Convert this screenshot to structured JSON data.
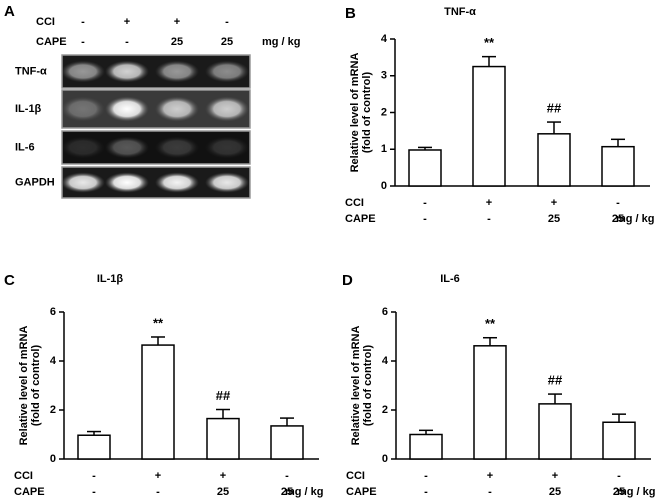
{
  "gel": {
    "panel_label": "A",
    "row_labels": [
      "CCI",
      "CAPE"
    ],
    "lanes": [
      [
        "-",
        "-"
      ],
      [
        "+",
        "-"
      ],
      [
        "+",
        "25"
      ],
      [
        "-",
        "25"
      ]
    ],
    "unit": "mg / kg",
    "bands": [
      "TNF-α",
      "IL-1β",
      "IL-6",
      "GAPDH"
    ]
  },
  "chart_data": [
    {
      "type": "bar",
      "panel_label": "B",
      "title": "TNF-α",
      "ylabel": [
        "Relative level of mRNA",
        "(fold of control)"
      ],
      "row_labels": [
        "CCI",
        "CAPE"
      ],
      "categories": [
        [
          "-",
          "-"
        ],
        [
          "+",
          "-"
        ],
        [
          "+",
          "25"
        ],
        [
          "-",
          "25"
        ]
      ],
      "unit": "mg / kg",
      "values": [
        0.98,
        3.25,
        1.42,
        1.07
      ],
      "errors": [
        0.07,
        0.27,
        0.32,
        0.2
      ],
      "color": "#ffffff",
      "ylim": [
        0,
        4
      ],
      "yticks": [
        0,
        1,
        2,
        3,
        4
      ],
      "annotations": [
        {
          "index": 1,
          "text": "**"
        },
        {
          "index": 2,
          "text": "##"
        }
      ]
    },
    {
      "type": "bar",
      "panel_label": "C",
      "title": "IL-1β",
      "ylabel": [
        "Relative level of mRNA",
        "(fold of control)"
      ],
      "row_labels": [
        "CCI",
        "CAPE"
      ],
      "categories": [
        [
          "-",
          "-"
        ],
        [
          "+",
          "-"
        ],
        [
          "+",
          "25"
        ],
        [
          "-",
          "25"
        ]
      ],
      "unit": "mg / kg",
      "values": [
        0.97,
        4.65,
        1.65,
        1.35
      ],
      "errors": [
        0.15,
        0.33,
        0.37,
        0.32
      ],
      "color": "#ffffff",
      "ylim": [
        0,
        6
      ],
      "yticks": [
        0,
        2,
        4,
        6
      ],
      "annotations": [
        {
          "index": 1,
          "text": "**"
        },
        {
          "index": 2,
          "text": "##"
        }
      ]
    },
    {
      "type": "bar",
      "panel_label": "D",
      "title": "IL-6",
      "ylabel": [
        "Relative level of mRNA",
        "(fold of control)"
      ],
      "row_labels": [
        "CCI",
        "CAPE"
      ],
      "categories": [
        [
          "-",
          "-"
        ],
        [
          "+",
          "-"
        ],
        [
          "+",
          "25"
        ],
        [
          "-",
          "25"
        ]
      ],
      "unit": "mg / kg",
      "values": [
        1.0,
        4.62,
        2.25,
        1.5
      ],
      "errors": [
        0.17,
        0.33,
        0.4,
        0.33
      ],
      "color": "#ffffff",
      "ylim": [
        0,
        6
      ],
      "yticks": [
        0,
        2,
        4,
        6
      ],
      "annotations": [
        {
          "index": 1,
          "text": "**"
        },
        {
          "index": 2,
          "text": "##"
        }
      ]
    }
  ]
}
